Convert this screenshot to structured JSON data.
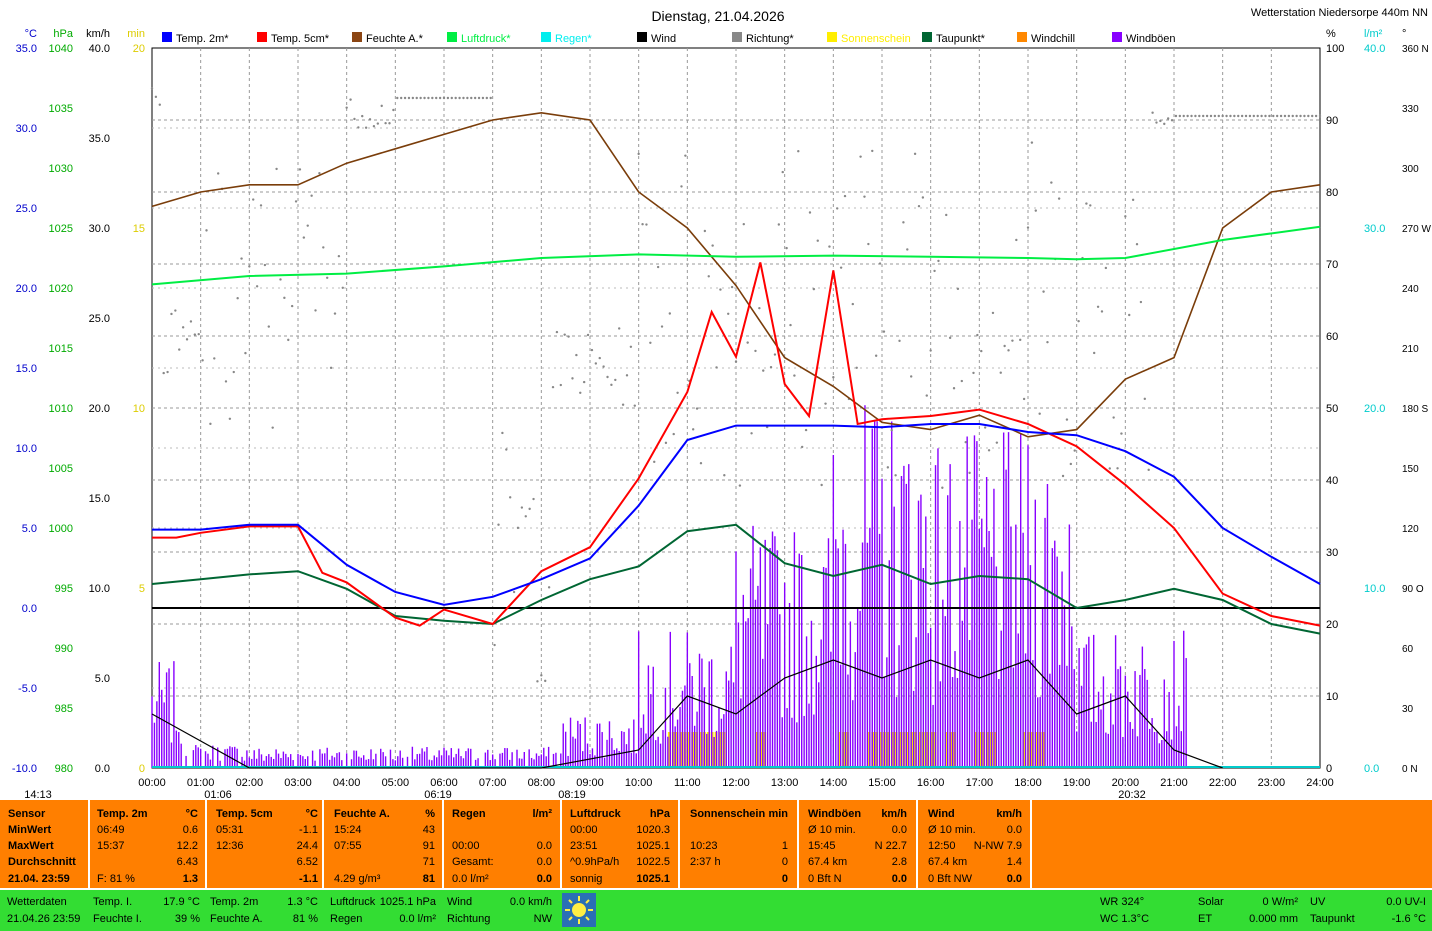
{
  "chart_data": {
    "type": "line",
    "title": "Dienstag, 21.04.2026",
    "station": "Wetterstation Niedersorpe 440m NN",
    "axes": {
      "temp": {
        "unit": "°C",
        "range": [
          -10,
          35
        ],
        "ticks": [
          "35.0",
          "30.0",
          "25.0",
          "20.0",
          "15.0",
          "10.0",
          "5.0",
          "0.0",
          "-5.0",
          "-10.0"
        ],
        "color": "#0000cc"
      },
      "pressure": {
        "unit": "hPa",
        "range": [
          980,
          1040
        ],
        "ticks": [
          "1040",
          "1035",
          "1030",
          "1025",
          "1020",
          "1015",
          "1010",
          "1005",
          "1000",
          "995",
          "990",
          "985",
          "980"
        ],
        "color": "#00aa00"
      },
      "wind": {
        "unit": "km/h",
        "range": [
          0,
          40
        ],
        "ticks": [
          "40.0",
          "35.0",
          "30.0",
          "25.0",
          "20.0",
          "15.0",
          "10.0",
          "5.0",
          "0.0"
        ],
        "color": "#000000"
      },
      "sun": {
        "unit": "min",
        "range": [
          0,
          20
        ],
        "ticks": [
          "20",
          "15",
          "10",
          "5",
          "0"
        ],
        "color": "#ddcc00"
      },
      "humidity": {
        "unit": "%",
        "range": [
          0,
          100
        ],
        "ticks": [
          "100",
          "90",
          "80",
          "70",
          "60",
          "50",
          "40",
          "30",
          "20",
          "10",
          "0"
        ],
        "color": "#000000"
      },
      "rain": {
        "unit": "l/m²",
        "range": [
          0,
          40
        ],
        "ticks": [
          "40.0",
          "30.0",
          "20.0",
          "10.0",
          "0.0"
        ],
        "color": "#00cccc"
      },
      "direction": {
        "unit": "°",
        "ticks": [
          "360 N",
          "330",
          "300",
          "270 W",
          "240",
          "210",
          "180 S",
          "150",
          "120",
          "90 O",
          "60",
          "30",
          "0 N"
        ],
        "color": "#000000"
      },
      "x_ticks": [
        "00:00",
        "01:00",
        "02:00",
        "03:00",
        "04:00",
        "05:00",
        "06:00",
        "07:00",
        "08:00",
        "09:00",
        "10:00",
        "11:00",
        "12:00",
        "13:00",
        "14:00",
        "15:00",
        "16:00",
        "17:00",
        "18:00",
        "19:00",
        "20:00",
        "21:00",
        "22:00",
        "23:00",
        "24:00"
      ]
    },
    "legend": [
      {
        "name": "Temp. 2m*",
        "color": "#0000ff"
      },
      {
        "name": "Temp. 5cm*",
        "color": "#ff0000"
      },
      {
        "name": "Feuchte A.*",
        "color": "#8b4513"
      },
      {
        "name": "Luftdruck*",
        "color": "#00ee44"
      },
      {
        "name": "Regen*",
        "color": "#00eeee"
      },
      {
        "name": "Wind",
        "color": "#000000"
      },
      {
        "name": "Richtung*",
        "color": "#888888"
      },
      {
        "name": "Sonnenschein",
        "color": "#ffee00"
      },
      {
        "name": "Taupunkt*",
        "color": "#006633"
      },
      {
        "name": "Windchill",
        "color": "#ff8800"
      },
      {
        "name": "Windböen",
        "color": "#8800ff"
      }
    ],
    "series": [
      {
        "name": "Temp. 2m",
        "axis": "temp",
        "x": [
          0,
          0.5,
          1,
          2,
          3,
          4,
          5,
          6,
          7,
          8,
          9,
          10,
          11,
          12,
          13,
          14,
          15,
          16,
          17,
          18,
          19,
          20,
          21,
          22,
          23,
          24
        ],
        "values": [
          4.9,
          4.9,
          4.9,
          5.2,
          5.2,
          2.7,
          1.0,
          0.2,
          0.7,
          1.8,
          3.1,
          6.4,
          10.5,
          11.4,
          11.4,
          11.4,
          11.3,
          11.5,
          11.5,
          11.0,
          10.8,
          9.8,
          8.2,
          5.0,
          3.2,
          1.5
        ]
      },
      {
        "name": "Temp. 5cm",
        "axis": "temp",
        "x": [
          0,
          0.5,
          1,
          2,
          3,
          3.5,
          4,
          5,
          5.5,
          6,
          7,
          8,
          9,
          10,
          11,
          11.5,
          12,
          12.5,
          13,
          13.5,
          14,
          14.5,
          15,
          16,
          17,
          18,
          19,
          20,
          21,
          22,
          23,
          24
        ],
        "values": [
          4.4,
          4.4,
          4.7,
          5.1,
          5.1,
          2.2,
          1.6,
          -0.6,
          -1.1,
          -0.1,
          -1.0,
          2.3,
          3.8,
          8.1,
          13.5,
          18.5,
          15.7,
          21.6,
          14.0,
          12.0,
          21.1,
          11.5,
          11.8,
          12.0,
          12.4,
          11.5,
          10.1,
          7.7,
          5.0,
          0.9,
          -0.5,
          -1.1
        ]
      },
      {
        "name": "Taupunkt",
        "axis": "temp",
        "x": [
          0,
          1,
          2,
          3,
          4,
          5,
          6,
          7,
          8,
          9,
          10,
          11,
          12,
          13,
          14,
          15,
          16,
          17,
          18,
          19,
          20,
          21,
          22,
          23,
          24
        ],
        "values": [
          1.5,
          1.8,
          2.1,
          2.3,
          1.2,
          -0.5,
          -0.8,
          -1.0,
          0.5,
          1.8,
          2.6,
          4.8,
          5.2,
          2.8,
          2.0,
          2.7,
          1.5,
          2.0,
          1.8,
          0.0,
          0.5,
          1.2,
          0.5,
          -1.0,
          -1.6
        ]
      },
      {
        "name": "Feuchte A.",
        "axis": "humidity",
        "x": [
          0,
          1,
          2,
          3,
          4,
          5,
          6,
          7,
          8,
          9,
          10,
          11,
          12,
          13,
          14,
          15,
          16,
          17,
          18,
          19,
          20,
          21,
          22,
          23,
          24
        ],
        "values": [
          78,
          80,
          81,
          81,
          84,
          86,
          88,
          90,
          91,
          90,
          80,
          75,
          67,
          57,
          53,
          48,
          47,
          49,
          46,
          47,
          54,
          57,
          75,
          80,
          81
        ]
      },
      {
        "name": "Luftdruck",
        "axis": "pressure",
        "x": [
          0,
          2,
          4,
          6,
          8,
          10,
          12,
          14,
          16,
          18,
          19,
          20,
          22,
          24
        ],
        "values": [
          1020.3,
          1021.0,
          1021.2,
          1021.8,
          1022.5,
          1022.8,
          1022.6,
          1022.7,
          1022.6,
          1022.5,
          1022.4,
          1022.5,
          1024.0,
          1025.1
        ]
      },
      {
        "name": "Wind",
        "axis": "wind",
        "x": [
          0,
          2,
          4,
          6,
          8,
          10,
          11,
          12,
          13,
          14,
          15,
          16,
          17,
          18,
          19,
          20,
          21,
          22
        ],
        "values": [
          3.0,
          0.0,
          0.0,
          0.0,
          0.0,
          1.0,
          4.0,
          3.0,
          5.0,
          6.0,
          5.0,
          6.0,
          5.0,
          6.0,
          3.0,
          4.0,
          1.0,
          0.0
        ]
      },
      {
        "name": "Windböen",
        "axis": "wind",
        "peak": 22.7,
        "peak_time": "15:45"
      },
      {
        "name": "Richtung",
        "axis": "direction",
        "note": "scatter of wind direction samples"
      }
    ],
    "time_markers": {
      "sunrise": "06:19",
      "sunset": "20:32",
      "moonrise_label": "14:13",
      "marker_1": "01:06",
      "marker_2": "08:19"
    }
  },
  "stats": {
    "headers": [
      "Sensor",
      "Temp. 2m",
      "°C",
      "Temp. 5cm",
      "°C",
      "Feuchte A.",
      "%",
      "Regen",
      "l/m²",
      "Luftdruck",
      "hPa",
      "Sonnenschein",
      "min",
      "Windböen",
      "km/h",
      "Wind",
      "km/h"
    ],
    "labels": [
      "MinWert",
      "MaxWert",
      "Durchschnitt",
      "21.04. 23:59"
    ],
    "t2": [
      [
        "06:49",
        "0.6"
      ],
      [
        "15:37",
        "12.2"
      ],
      [
        "",
        "6.43"
      ],
      [
        "F: 81 %",
        "1.3"
      ]
    ],
    "t5": [
      [
        "05:31",
        "-1.1"
      ],
      [
        "12:36",
        "24.4"
      ],
      [
        "",
        "6.52"
      ],
      [
        "",
        "-1.1"
      ]
    ],
    "hum": [
      [
        "15:24",
        "43"
      ],
      [
        "07:55",
        "91"
      ],
      [
        "",
        "71"
      ],
      [
        "4.29 g/m³",
        "81"
      ]
    ],
    "rain": [
      [
        "",
        ""
      ],
      [
        "00:00",
        "0.0"
      ],
      [
        "Gesamt:",
        "0.0"
      ],
      [
        "0.0 l/m²",
        "0.0"
      ]
    ],
    "press": [
      [
        "00:00",
        "1020.3"
      ],
      [
        "23:51",
        "1025.1"
      ],
      [
        "^0.9hPa/h",
        "1022.5"
      ],
      [
        "sonnig",
        "1025.1"
      ]
    ],
    "sun": [
      [
        "",
        ""
      ],
      [
        "10:23",
        "1"
      ],
      [
        "2:37 h",
        "0"
      ],
      [
        "",
        "0"
      ]
    ],
    "gust": [
      [
        "Ø 10 min.",
        "0.0"
      ],
      [
        "15:45",
        "N 22.7"
      ],
      [
        "67.4 km",
        "2.8"
      ],
      [
        "0 Bft N",
        "0.0"
      ]
    ],
    "wind": [
      [
        "Ø 10 min.",
        "0.0"
      ],
      [
        "12:50",
        "N-NW 7.9"
      ],
      [
        "67.4 km",
        "1.4"
      ],
      [
        "0 Bft NW",
        "0.0"
      ]
    ]
  },
  "footer": {
    "title": "Wetterdaten",
    "stamp": "21.04.26 23:59",
    "ti_label": "Temp. I.",
    "ti_value": "17.9 °C",
    "fi_label": "Feuchte I.",
    "fi_value": "39 %",
    "t2_label": "Temp. 2m",
    "t2_value": "1.3 °C",
    "fa_label": "Feuchte A.",
    "fa_value": "81 %",
    "lp_label": "Luftdruck",
    "lp_value": "1025.1 hPa",
    "rg_label": "Regen",
    "rg_value": "0.0 l/m²",
    "wi_label": "Wind",
    "wi_value": "0.0 km/h",
    "ri_label": "Richtung",
    "ri_value": "NW",
    "wr": "WR 324°",
    "wc": "WC 1.3°C",
    "solar_label": "Solar",
    "solar_value": "0 W/m²",
    "et_label": "ET",
    "et_value": "0.000 mm",
    "uv_label": "UV",
    "uv_value": "0.0 UV-I",
    "tp_label": "Taupunkt",
    "tp_value": "-1.6 °C"
  }
}
